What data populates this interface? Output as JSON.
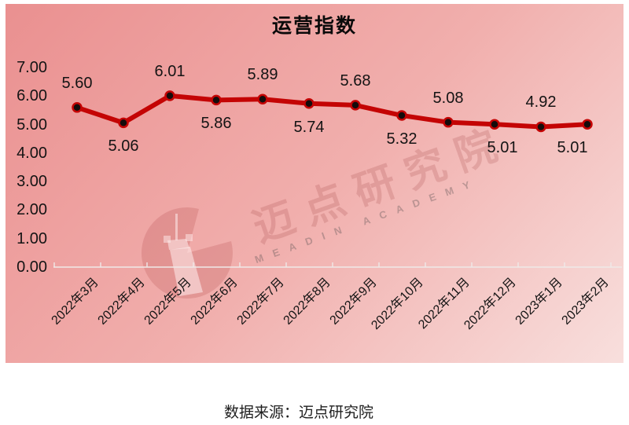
{
  "chart_data": {
    "type": "line",
    "title": "运营指数",
    "categories": [
      "2022年3月",
      "2022年4月",
      "2022年5月",
      "2022年6月",
      "2022年7月",
      "2022年8月",
      "2022年9月",
      "2022年10月",
      "2022年11月",
      "2022年12月",
      "2023年1月",
      "2023年2月"
    ],
    "values": [
      5.6,
      5.06,
      6.01,
      5.86,
      5.89,
      5.74,
      5.68,
      5.32,
      5.08,
      5.01,
      4.92,
      5.01
    ],
    "point_labels": [
      "5.60",
      "5.06",
      "6.01",
      "5.86",
      "5.89",
      "5.74",
      "5.68",
      "5.32",
      "5.08",
      "5.01",
      "4.92",
      "5.01"
    ],
    "label_positions": [
      "above",
      "below",
      "above",
      "below",
      "above",
      "below",
      "above",
      "below",
      "above",
      "below",
      "above",
      "below"
    ],
    "xlabel": "",
    "ylabel": "",
    "ylim": [
      0,
      7
    ],
    "ytick_labels": [
      "0.00",
      "1.00",
      "2.00",
      "3.00",
      "4.00",
      "5.00",
      "6.00",
      "7.00"
    ],
    "grid": false,
    "legend": false,
    "line_color": "#c40404",
    "marker_color": "#140c0c",
    "axis_color": "#efe9e8"
  },
  "watermark": {
    "cn_text": "迈点研究院",
    "en_text": "MEADIN ACADEMY",
    "logo": "meadin-tower-logo"
  },
  "footer": {
    "source_text": "数据来源：迈点研究院"
  }
}
